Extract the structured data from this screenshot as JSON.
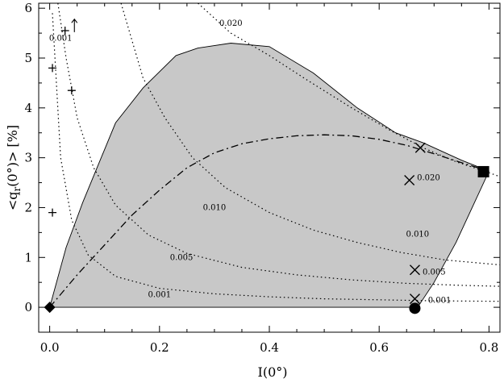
{
  "chart_data": {
    "type": "scatter",
    "xlabel": "I(0°)",
    "ylabel": "<q_r(0°)> [%]",
    "ylabel_parts": {
      "open": "<q",
      "sub": "r",
      "close": "(0°)> [%]"
    },
    "xlim": [
      -0.02,
      0.82
    ],
    "ylim": [
      -0.5,
      6.1
    ],
    "xticks": [
      "0.0",
      "0.2",
      "0.4",
      "0.6",
      "0.8"
    ],
    "yticks": [
      "0",
      "1",
      "2",
      "3",
      "4",
      "5",
      "6"
    ],
    "grid": false,
    "shaded_region": {
      "fill": "#c8c8c8",
      "boundary": [
        [
          0.0,
          0.0
        ],
        [
          0.03,
          1.2
        ],
        [
          0.06,
          2.1
        ],
        [
          0.12,
          3.7
        ],
        [
          0.17,
          4.4
        ],
        [
          0.23,
          5.05
        ],
        [
          0.27,
          5.2
        ],
        [
          0.33,
          5.3
        ],
        [
          0.4,
          5.23
        ],
        [
          0.48,
          4.7
        ],
        [
          0.56,
          4.0
        ],
        [
          0.63,
          3.5
        ],
        [
          0.68,
          3.3
        ],
        [
          0.75,
          2.95
        ],
        [
          0.8,
          2.73
        ],
        [
          0.74,
          1.3
        ],
        [
          0.7,
          0.5
        ],
        [
          0.67,
          0.0
        ]
      ]
    },
    "dash_dot_curve": [
      [
        0.0,
        0.0
      ],
      [
        0.05,
        0.65
      ],
      [
        0.1,
        1.25
      ],
      [
        0.15,
        1.85
      ],
      [
        0.2,
        2.35
      ],
      [
        0.25,
        2.8
      ],
      [
        0.3,
        3.1
      ],
      [
        0.35,
        3.28
      ],
      [
        0.4,
        3.38
      ],
      [
        0.45,
        3.44
      ],
      [
        0.5,
        3.46
      ],
      [
        0.55,
        3.44
      ],
      [
        0.6,
        3.37
      ],
      [
        0.65,
        3.25
      ],
      [
        0.7,
        3.08
      ],
      [
        0.75,
        2.9
      ],
      [
        0.8,
        2.73
      ]
    ],
    "contours": [
      {
        "label": "0.001",
        "label_at": [
          0.2,
          0.2
        ],
        "points": [
          [
            0.005,
            5.9
          ],
          [
            0.02,
            3.0
          ],
          [
            0.04,
            1.75
          ],
          [
            0.07,
            1.05
          ],
          [
            0.12,
            0.62
          ],
          [
            0.2,
            0.38
          ],
          [
            0.3,
            0.27
          ],
          [
            0.4,
            0.21
          ],
          [
            0.5,
            0.17
          ],
          [
            0.6,
            0.15
          ],
          [
            0.7,
            0.13
          ],
          [
            0.82,
            0.12
          ]
        ]
      },
      {
        "label": "0.005",
        "label_at": [
          0.24,
          0.95
        ],
        "points": [
          [
            0.015,
            6.1
          ],
          [
            0.03,
            5.0
          ],
          [
            0.05,
            3.8
          ],
          [
            0.08,
            2.8
          ],
          [
            0.12,
            2.05
          ],
          [
            0.18,
            1.45
          ],
          [
            0.25,
            1.08
          ],
          [
            0.35,
            0.8
          ],
          [
            0.45,
            0.65
          ],
          [
            0.55,
            0.55
          ],
          [
            0.65,
            0.48
          ],
          [
            0.75,
            0.44
          ],
          [
            0.82,
            0.42
          ]
        ]
      },
      {
        "label": "0.010",
        "label_at": [
          0.3,
          1.95
        ],
        "points": [
          [
            0.13,
            6.1
          ],
          [
            0.17,
            4.6
          ],
          [
            0.21,
            3.8
          ],
          [
            0.26,
            3.0
          ],
          [
            0.32,
            2.4
          ],
          [
            0.4,
            1.9
          ],
          [
            0.48,
            1.55
          ],
          [
            0.56,
            1.3
          ],
          [
            0.64,
            1.1
          ],
          [
            0.72,
            0.95
          ],
          [
            0.82,
            0.85
          ]
        ]
      },
      {
        "label": "0.020",
        "label_at": [
          0.33,
          5.65
        ],
        "points": [
          [
            0.27,
            6.1
          ],
          [
            0.33,
            5.5
          ],
          [
            0.4,
            5.05
          ],
          [
            0.47,
            4.55
          ],
          [
            0.55,
            4.0
          ],
          [
            0.62,
            3.55
          ],
          [
            0.68,
            3.2
          ],
          [
            0.74,
            2.92
          ],
          [
            0.8,
            2.7
          ],
          [
            0.82,
            2.62
          ]
        ]
      },
      {
        "label": "0.020",
        "label_at": [
          0.69,
          2.55
        ],
        "points": []
      },
      {
        "label": "0.010",
        "label_at": [
          0.67,
          1.42
        ],
        "points": []
      },
      {
        "label": "0.005",
        "label_at": [
          0.7,
          0.66
        ],
        "points": []
      },
      {
        "label": "0.001",
        "label_at": [
          0.71,
          0.09
        ],
        "points": []
      },
      {
        "label": "0.001",
        "label_at": [
          0.02,
          5.35
        ],
        "points": []
      }
    ],
    "points": [
      {
        "marker": "diamond",
        "x": 0.0,
        "y": 0.0
      },
      {
        "marker": "square",
        "x": 0.79,
        "y": 2.72
      },
      {
        "marker": "circle",
        "x": 0.665,
        "y": -0.02
      },
      {
        "marker": "x",
        "x": 0.675,
        "y": 3.2
      },
      {
        "marker": "x",
        "x": 0.655,
        "y": 2.55
      },
      {
        "marker": "x",
        "x": 0.665,
        "y": 0.75
      },
      {
        "marker": "x",
        "x": 0.665,
        "y": 0.17
      },
      {
        "marker": "plus",
        "x": 0.005,
        "y": 4.8
      },
      {
        "marker": "plus",
        "x": 0.04,
        "y": 4.35
      },
      {
        "marker": "plus",
        "x": 0.005,
        "y": 1.9
      },
      {
        "marker": "plus",
        "x": 0.028,
        "y": 5.55
      }
    ],
    "annotations": [
      {
        "type": "arrow-up",
        "x": 0.045,
        "y": 5.65
      }
    ]
  }
}
